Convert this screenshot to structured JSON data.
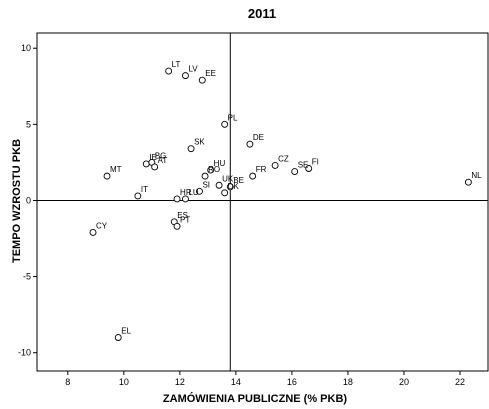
{
  "chart_data": {
    "type": "scatter",
    "title": "2011",
    "xlabel": "ZAMÓWIENIA PUBLICZNE (% PKB)",
    "ylabel": "TEMPO WZROSTU PKB",
    "xlim": [
      6.9,
      23.0
    ],
    "ylim": [
      -11.2,
      11.0
    ],
    "x_ticks": [
      8,
      10,
      12,
      14,
      16,
      18,
      20,
      22
    ],
    "y_ticks": [
      -10,
      -5,
      0,
      5,
      10
    ],
    "reference_lines": {
      "x": 13.8,
      "y": 0
    },
    "grid": false,
    "legend": "none",
    "marker": "open-circle",
    "points": [
      {
        "label": "LT",
        "x": 11.6,
        "y": 8.5
      },
      {
        "label": "LV",
        "x": 12.2,
        "y": 8.2
      },
      {
        "label": "EE",
        "x": 12.8,
        "y": 7.9
      },
      {
        "label": "PL",
        "x": 13.6,
        "y": 5.0
      },
      {
        "label": "DE",
        "x": 14.5,
        "y": 3.7
      },
      {
        "label": "SK",
        "x": 12.4,
        "y": 3.4
      },
      {
        "label": "CZ",
        "x": 15.4,
        "y": 2.3
      },
      {
        "label": "FI",
        "x": 16.6,
        "y": 2.1
      },
      {
        "label": "NL",
        "x": 22.3,
        "y": 1.2
      },
      {
        "label": "FR",
        "x": 14.6,
        "y": 1.6
      },
      {
        "label": "SE",
        "x": 16.1,
        "y": 1.9
      },
      {
        "label": "HU",
        "x": 13.1,
        "y": 2.0
      },
      {
        "label": "RO",
        "x": 12.9,
        "y": 1.6
      },
      {
        "label": "UK",
        "x": 13.4,
        "y": 1.0
      },
      {
        "label": "BE",
        "x": 13.8,
        "y": 0.9
      },
      {
        "label": "SI",
        "x": 12.7,
        "y": 0.6
      },
      {
        "label": "DK",
        "x": 13.6,
        "y": 0.5
      },
      {
        "label": "IE",
        "x": 10.8,
        "y": 2.4
      },
      {
        "label": "BG",
        "x": 11.0,
        "y": 2.5
      },
      {
        "label": "AT",
        "x": 11.1,
        "y": 2.2
      },
      {
        "label": "MT",
        "x": 9.4,
        "y": 1.6
      },
      {
        "label": "IT",
        "x": 10.5,
        "y": 0.3
      },
      {
        "label": "HR",
        "x": 11.9,
        "y": 0.1
      },
      {
        "label": "LU",
        "x": 12.2,
        "y": 0.1
      },
      {
        "label": "ES",
        "x": 11.8,
        "y": -1.4
      },
      {
        "label": "PT",
        "x": 11.9,
        "y": -1.7
      },
      {
        "label": "CY",
        "x": 8.9,
        "y": -2.1
      },
      {
        "label": "EL",
        "x": 9.8,
        "y": -9.0
      }
    ]
  }
}
